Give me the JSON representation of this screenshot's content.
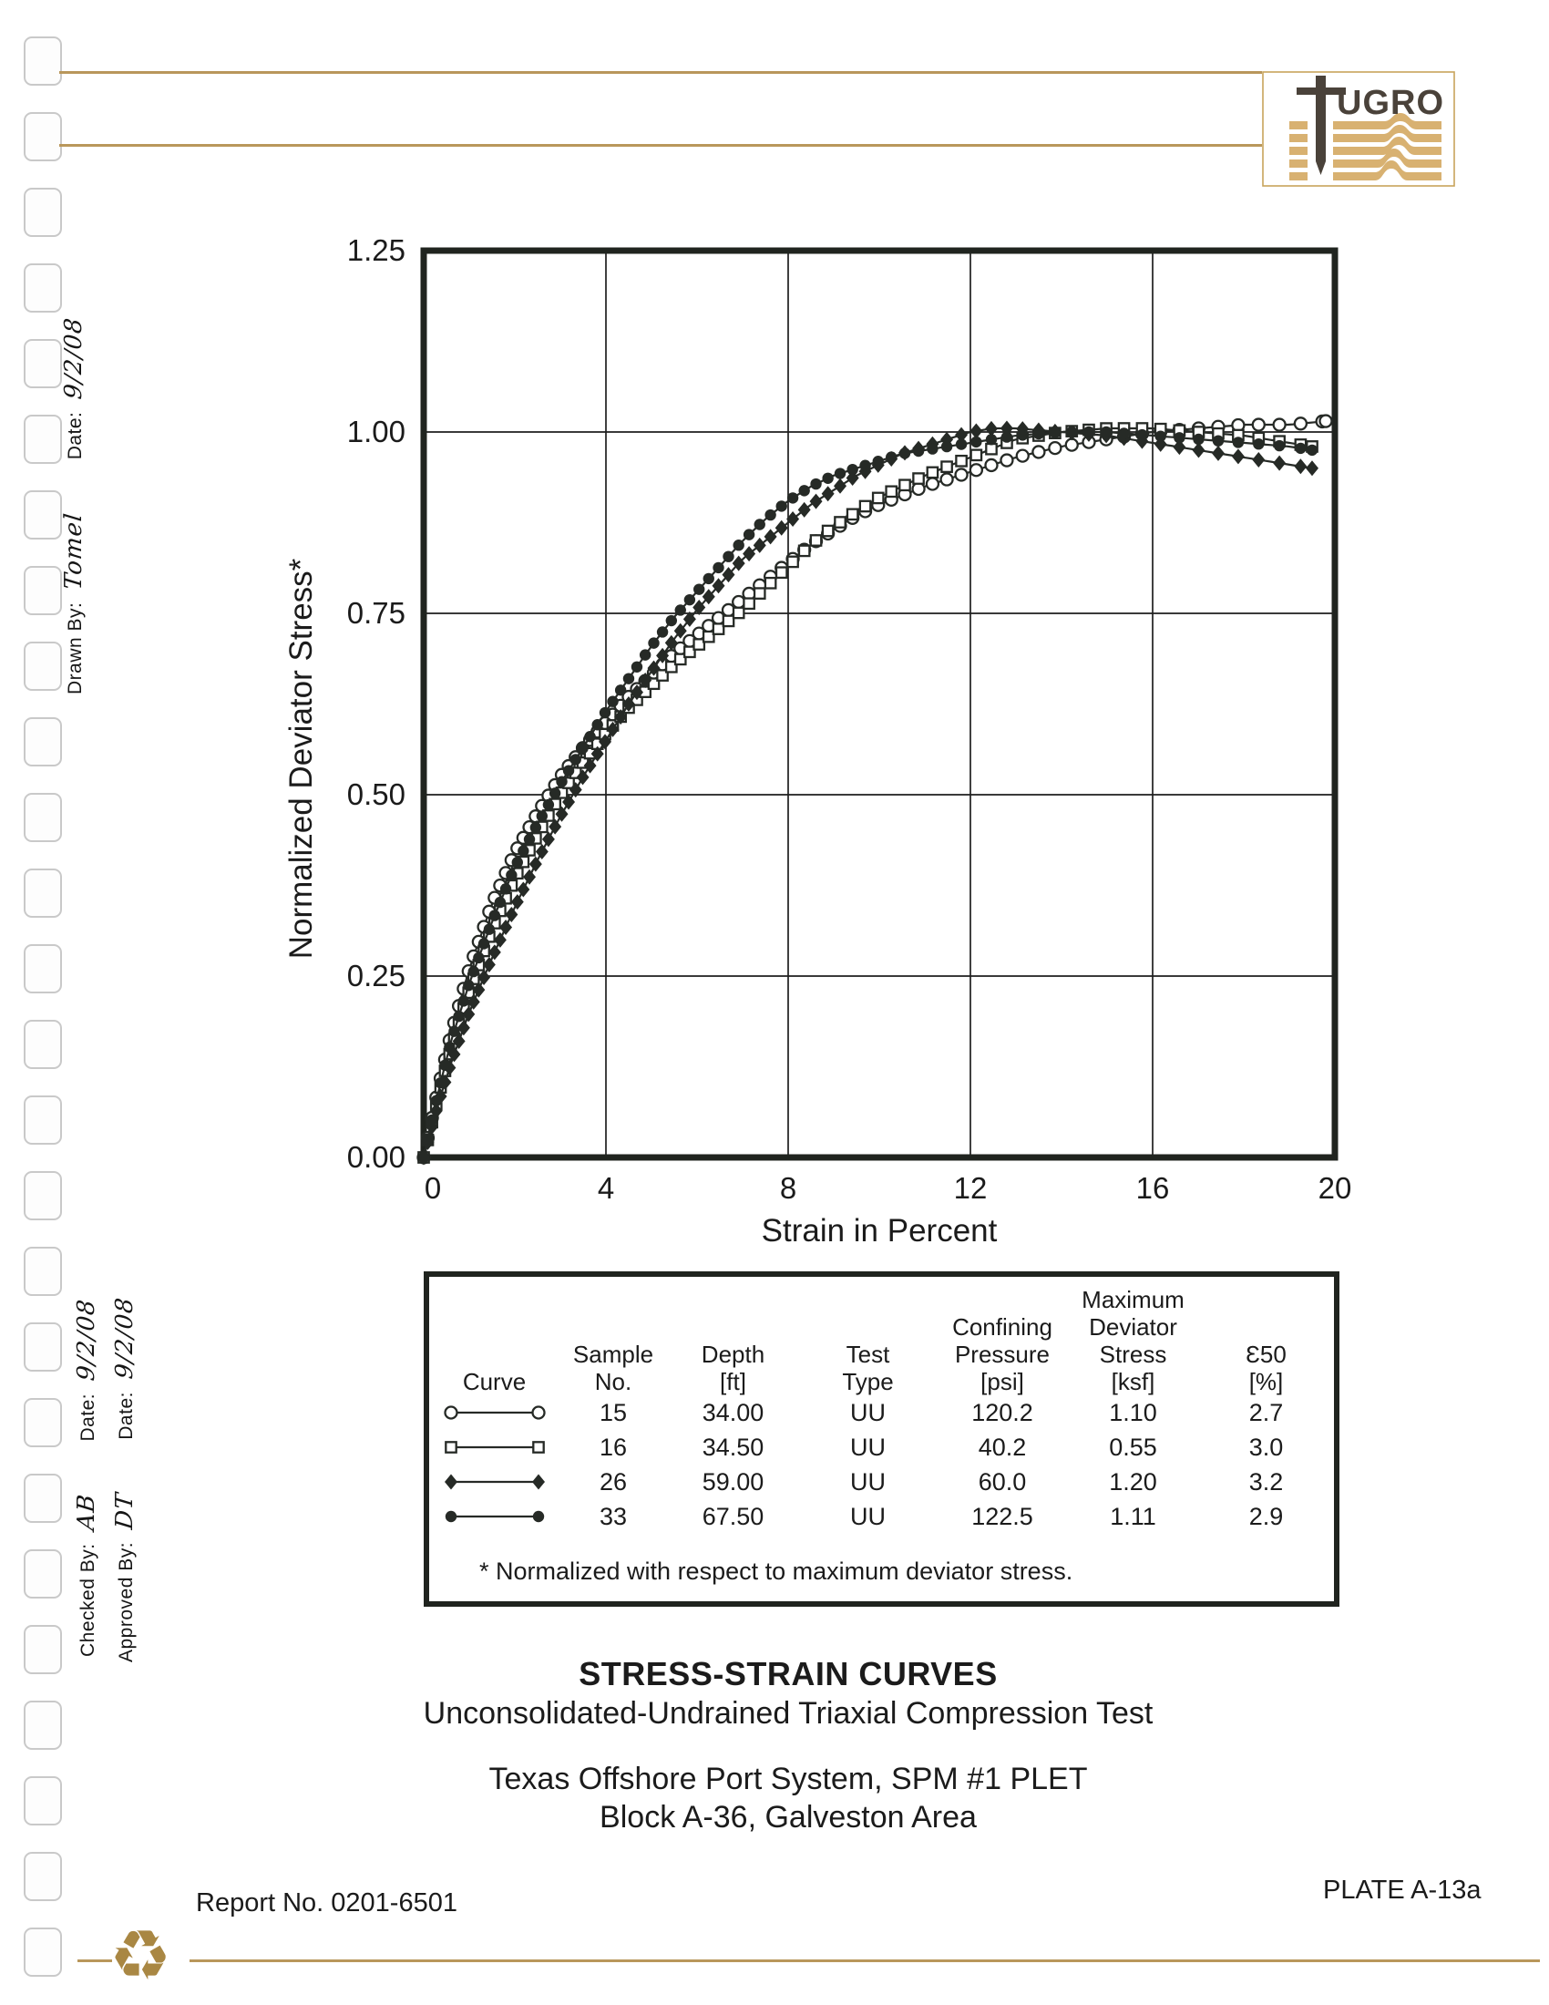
{
  "page": {
    "report_no": "Report No. 0201-6501",
    "plate": "PLATE A-13a"
  },
  "logo": {
    "letters": "UGRO",
    "stripe_color": "#d8b171",
    "mark_color": "#4a423a",
    "border_color": "#c8a45c"
  },
  "margin_annotations": {
    "drawn_by_label": "Drawn By:",
    "drawn_by_value": "Tomel",
    "drawn_date_label": "Date:",
    "drawn_date_value": "9/2/08",
    "checked_by_label": "Checked By:",
    "checked_by_value": "AB",
    "checked_date_label": "Date:",
    "checked_date_value": "9/2/08",
    "approved_by_label": "Approved By:",
    "approved_by_value": "DT",
    "approved_date_label": "Date:",
    "approved_date_value": "9/2/08"
  },
  "chart_data": {
    "type": "line",
    "title": "",
    "xlabel": "Strain in Percent",
    "ylabel": "Normalized Deviator Stress*",
    "xlim": [
      0,
      20
    ],
    "ylim": [
      0,
      1.25
    ],
    "xticks": [
      0,
      4,
      8,
      12,
      16,
      20
    ],
    "yticks": [
      0.0,
      0.25,
      0.5,
      0.75,
      1.0,
      1.25
    ],
    "grid": true,
    "line_color": "#262a26",
    "series": [
      {
        "name": "Sample 15",
        "marker": "open-circle",
        "points": [
          [
            0,
            0
          ],
          [
            0.3,
            0.09
          ],
          [
            0.6,
            0.17
          ],
          [
            1,
            0.26
          ],
          [
            1.5,
            0.35
          ],
          [
            2,
            0.42
          ],
          [
            2.5,
            0.475
          ],
          [
            3,
            0.525
          ],
          [
            3.5,
            0.565
          ],
          [
            4,
            0.6
          ],
          [
            4.5,
            0.635
          ],
          [
            5,
            0.665
          ],
          [
            5.5,
            0.695
          ],
          [
            6,
            0.72
          ],
          [
            6.5,
            0.745
          ],
          [
            7,
            0.77
          ],
          [
            7.5,
            0.795
          ],
          [
            8,
            0.82
          ],
          [
            8.5,
            0.845
          ],
          [
            9,
            0.865
          ],
          [
            9.5,
            0.885
          ],
          [
            10,
            0.9
          ],
          [
            11,
            0.925
          ],
          [
            12,
            0.945
          ],
          [
            13,
            0.965
          ],
          [
            14,
            0.98
          ],
          [
            15,
            0.99
          ],
          [
            16,
            1.0
          ],
          [
            17,
            1.005
          ],
          [
            18,
            1.01
          ],
          [
            19,
            1.01
          ],
          [
            19.8,
            1.015
          ]
        ]
      },
      {
        "name": "Sample 16",
        "marker": "open-square",
        "points": [
          [
            0,
            0
          ],
          [
            0.3,
            0.08
          ],
          [
            0.6,
            0.15
          ],
          [
            1,
            0.23
          ],
          [
            1.5,
            0.315
          ],
          [
            2,
            0.385
          ],
          [
            2.5,
            0.445
          ],
          [
            3,
            0.5
          ],
          [
            3.5,
            0.545
          ],
          [
            4,
            0.585
          ],
          [
            4.5,
            0.62
          ],
          [
            5,
            0.65
          ],
          [
            5.5,
            0.68
          ],
          [
            6,
            0.705
          ],
          [
            6.5,
            0.73
          ],
          [
            7,
            0.755
          ],
          [
            7.5,
            0.785
          ],
          [
            8,
            0.815
          ],
          [
            8.5,
            0.845
          ],
          [
            9,
            0.87
          ],
          [
            9.5,
            0.89
          ],
          [
            10,
            0.91
          ],
          [
            11,
            0.94
          ],
          [
            12,
            0.965
          ],
          [
            13,
            0.99
          ],
          [
            14,
            1.0
          ],
          [
            15,
            1.005
          ],
          [
            16,
            1.005
          ],
          [
            17,
            1.0
          ],
          [
            18,
            0.995
          ],
          [
            19,
            0.985
          ],
          [
            19.5,
            0.98
          ]
        ]
      },
      {
        "name": "Sample 26",
        "marker": "filled-diamond",
        "points": [
          [
            0,
            0
          ],
          [
            0.3,
            0.07
          ],
          [
            0.6,
            0.13
          ],
          [
            1,
            0.2
          ],
          [
            1.5,
            0.275
          ],
          [
            2,
            0.345
          ],
          [
            2.5,
            0.41
          ],
          [
            3,
            0.47
          ],
          [
            3.5,
            0.525
          ],
          [
            4,
            0.575
          ],
          [
            4.5,
            0.625
          ],
          [
            5,
            0.67
          ],
          [
            5.5,
            0.715
          ],
          [
            6,
            0.755
          ],
          [
            6.5,
            0.79
          ],
          [
            7,
            0.825
          ],
          [
            7.5,
            0.85
          ],
          [
            8,
            0.875
          ],
          [
            8.5,
            0.9
          ],
          [
            9,
            0.92
          ],
          [
            9.5,
            0.94
          ],
          [
            10,
            0.955
          ],
          [
            10.5,
            0.97
          ],
          [
            11,
            0.98
          ],
          [
            11.5,
            0.99
          ],
          [
            12,
            1.0
          ],
          [
            12.5,
            1.005
          ],
          [
            13,
            1.005
          ],
          [
            14,
            1.0
          ],
          [
            15,
            0.995
          ],
          [
            16,
            0.985
          ],
          [
            17,
            0.975
          ],
          [
            18,
            0.965
          ],
          [
            19,
            0.955
          ],
          [
            19.5,
            0.95
          ]
        ]
      },
      {
        "name": "Sample 33",
        "marker": "filled-circle",
        "points": [
          [
            0,
            0
          ],
          [
            0.3,
            0.085
          ],
          [
            0.6,
            0.16
          ],
          [
            1,
            0.24
          ],
          [
            1.5,
            0.325
          ],
          [
            2,
            0.4
          ],
          [
            2.5,
            0.46
          ],
          [
            3,
            0.515
          ],
          [
            3.5,
            0.565
          ],
          [
            4,
            0.615
          ],
          [
            4.5,
            0.66
          ],
          [
            5,
            0.705
          ],
          [
            5.5,
            0.745
          ],
          [
            6,
            0.78
          ],
          [
            6.5,
            0.815
          ],
          [
            7,
            0.85
          ],
          [
            7.5,
            0.88
          ],
          [
            8,
            0.905
          ],
          [
            8.5,
            0.925
          ],
          [
            9,
            0.94
          ],
          [
            9.5,
            0.95
          ],
          [
            10,
            0.96
          ],
          [
            10.5,
            0.97
          ],
          [
            11,
            0.975
          ],
          [
            11.5,
            0.98
          ],
          [
            12,
            0.985
          ],
          [
            13,
            0.995
          ],
          [
            14,
            1.0
          ],
          [
            15,
            1.0
          ],
          [
            16,
            0.995
          ],
          [
            17,
            0.99
          ],
          [
            18,
            0.985
          ],
          [
            19,
            0.98
          ],
          [
            19.5,
            0.975
          ]
        ]
      }
    ]
  },
  "legend_table": {
    "columns": [
      [
        "Curve"
      ],
      [
        "Sample",
        "No."
      ],
      [
        "Depth",
        "[ft]"
      ],
      [
        "Test",
        "Type"
      ],
      [
        "Confining",
        "Pressure",
        "[psi]"
      ],
      [
        "Maximum",
        "Deviator",
        "Stress",
        "[ksf]"
      ],
      [
        "Ɛ50",
        "[%]"
      ]
    ],
    "rows": [
      {
        "marker": "open-circle",
        "sample": "15",
        "depth": "34.00",
        "test": "UU",
        "pressure": "120.2",
        "stress": "1.10",
        "e50": "2.7"
      },
      {
        "marker": "open-square",
        "sample": "16",
        "depth": "34.50",
        "test": "UU",
        "pressure": "40.2",
        "stress": "0.55",
        "e50": "3.0"
      },
      {
        "marker": "filled-diamond",
        "sample": "26",
        "depth": "59.00",
        "test": "UU",
        "pressure": "60.0",
        "stress": "1.20",
        "e50": "3.2"
      },
      {
        "marker": "filled-circle",
        "sample": "33",
        "depth": "67.50",
        "test": "UU",
        "pressure": "122.5",
        "stress": "1.11",
        "e50": "2.9"
      }
    ],
    "footnote": "* Normalized with respect to maximum deviator stress."
  },
  "titles": {
    "line1": "STRESS-STRAIN CURVES",
    "line2": "Unconsolidated-Undrained Triaxial Compression Test",
    "line3": "Texas Offshore Port System, SPM #1 PLET",
    "line4": "Block A-36, Galveston Area"
  },
  "recycle_symbol": "♻"
}
